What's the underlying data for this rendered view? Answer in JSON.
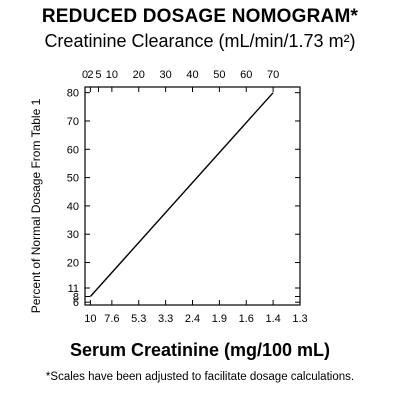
{
  "title": "REDUCED DOSAGE NOMOGRAM*",
  "subtitle": "Creatinine Clearance (mL/min/1.73 m²)",
  "xlabel": "Serum Creatinine (mg/100 mL)",
  "footnote": "*Scales have been adjusted to facilitate dosage calculations.",
  "chart_data": {
    "type": "line",
    "title": "REDUCED DOSAGE NOMOGRAM*",
    "top_axis_label": "Creatinine Clearance (mL/min/1.73 m²)",
    "xlabel": "Serum Creatinine (mg/100 mL)",
    "ylabel": "Percent of Normal Dosage From Table 1",
    "top_ticks": [
      "0",
      "2",
      "5",
      "10",
      "20",
      "30",
      "40",
      "50",
      "60",
      "70"
    ],
    "top_tick_values": [
      0,
      2,
      5,
      10,
      20,
      30,
      40,
      50,
      60,
      70
    ],
    "bottom_ticks": [
      "10",
      "7.6",
      "5.3",
      "3.3",
      "2.4",
      "1.9",
      "1.6",
      "1.4",
      "1.3"
    ],
    "bottom_tick_values": [
      2,
      10,
      20,
      30,
      40,
      50,
      60,
      70,
      80
    ],
    "y_ticks": [
      "6",
      "8",
      "11",
      "20",
      "30",
      "40",
      "50",
      "60",
      "70",
      "80"
    ],
    "y_tick_values": [
      6,
      8,
      11,
      20,
      30,
      40,
      50,
      60,
      70,
      80
    ],
    "xlim": [
      0,
      80
    ],
    "ylim": [
      5,
      82
    ],
    "series": [
      {
        "x": [
          2,
          70
        ],
        "y": [
          8,
          80
        ]
      }
    ],
    "grid": false,
    "legend": "none"
  }
}
